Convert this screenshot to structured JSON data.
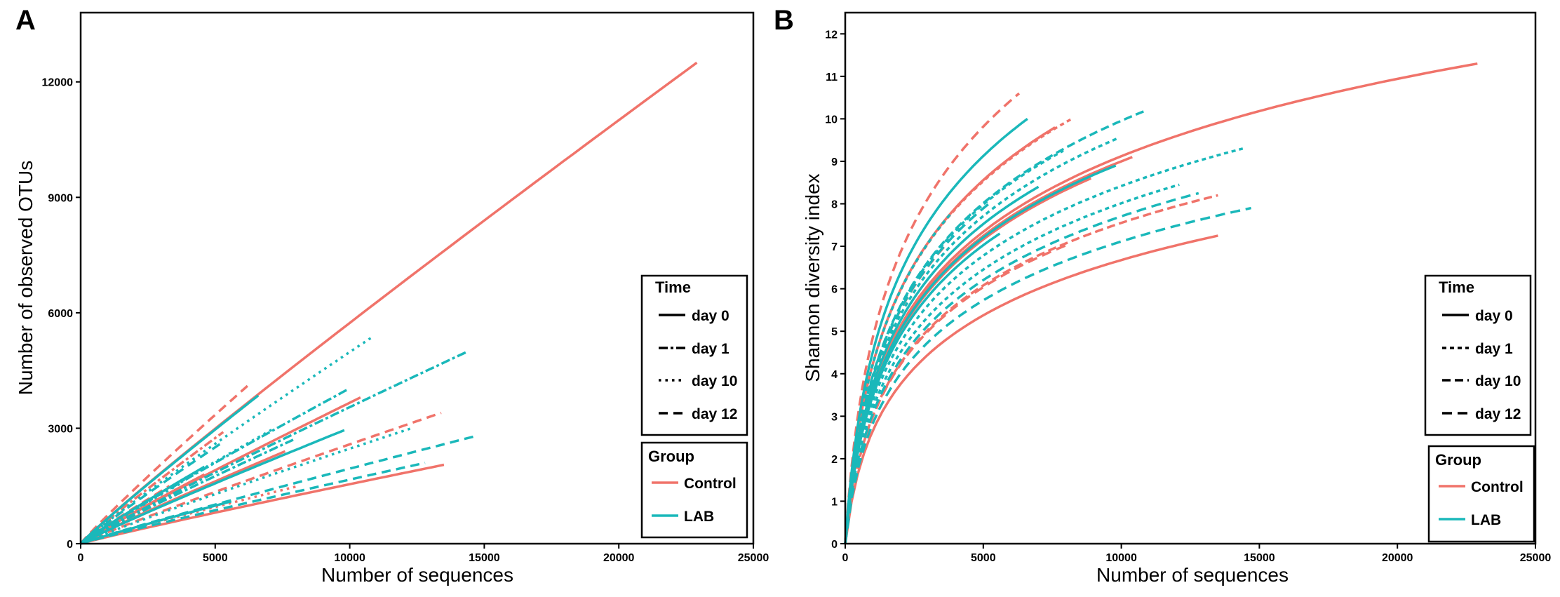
{
  "panels": [
    {
      "label": "A"
    },
    {
      "label": "B"
    }
  ],
  "legend": {
    "time_title": "Time",
    "time_items": [
      "day 0",
      "day 1",
      "day 10",
      "day 12"
    ],
    "group_title": "Group",
    "group_items": [
      "Control",
      "LAB"
    ]
  },
  "colors": {
    "Control": "#F0736A",
    "LAB": "#1AB8BA"
  },
  "chart_data": [
    {
      "type": "line",
      "panel": "A",
      "title": "",
      "xlabel": "Number of sequences",
      "ylabel": "Number of observed OTUs",
      "xlim": [
        0,
        25000
      ],
      "ylim": [
        0,
        13800
      ],
      "xticks": [
        0,
        5000,
        10000,
        15000,
        20000,
        25000
      ],
      "yticks": [
        0,
        3000,
        6000,
        9000,
        12000
      ],
      "series": [
        {
          "group": "Control",
          "time": "day 0",
          "xmax": 22900,
          "ymax": 12500
        },
        {
          "group": "Control",
          "time": "day 0",
          "xmax": 13500,
          "ymax": 2050
        },
        {
          "group": "Control",
          "time": "day 0",
          "xmax": 10400,
          "ymax": 3800
        },
        {
          "group": "Control",
          "time": "day 0",
          "xmax": 7600,
          "ymax": 2400
        },
        {
          "group": "Control",
          "time": "day 12",
          "xmax": 13400,
          "ymax": 3400
        },
        {
          "group": "Control",
          "time": "day 12",
          "xmax": 6200,
          "ymax": 4100
        },
        {
          "group": "Control",
          "time": "day 10",
          "xmax": 8100,
          "ymax": 1500
        },
        {
          "group": "Control",
          "time": "day 1",
          "xmax": 5300,
          "ymax": 2900
        },
        {
          "group": "Control",
          "time": "day 0",
          "xmax": 4600,
          "ymax": 1800
        },
        {
          "group": "Control",
          "time": "day 12",
          "xmax": 3300,
          "ymax": 1500
        },
        {
          "group": "Control",
          "time": "day 1",
          "xmax": 3600,
          "ymax": 1300
        },
        {
          "group": "LAB",
          "time": "day 10",
          "xmax": 10900,
          "ymax": 5400
        },
        {
          "group": "LAB",
          "time": "day 1",
          "xmax": 14400,
          "ymax": 5000
        },
        {
          "group": "LAB",
          "time": "day 12",
          "xmax": 14700,
          "ymax": 2800
        },
        {
          "group": "LAB",
          "time": "day 0",
          "xmax": 9800,
          "ymax": 2950
        },
        {
          "group": "LAB",
          "time": "day 0",
          "xmax": 6600,
          "ymax": 3850
        },
        {
          "group": "LAB",
          "time": "day 1",
          "xmax": 9900,
          "ymax": 4000
        },
        {
          "group": "LAB",
          "time": "day 10",
          "xmax": 12300,
          "ymax": 3000
        },
        {
          "group": "LAB",
          "time": "day 12",
          "xmax": 12800,
          "ymax": 2100
        },
        {
          "group": "LAB",
          "time": "day 0",
          "xmax": 5600,
          "ymax": 1100
        },
        {
          "group": "LAB",
          "time": "day 10",
          "xmax": 7200,
          "ymax": 3000
        },
        {
          "group": "LAB",
          "time": "day 1",
          "xmax": 7900,
          "ymax": 2700
        },
        {
          "group": "LAB",
          "time": "day 12",
          "xmax": 5200,
          "ymax": 2600
        },
        {
          "group": "LAB",
          "time": "day 0",
          "xmax": 4600,
          "ymax": 2000
        },
        {
          "group": "LAB",
          "time": "day 10",
          "xmax": 3800,
          "ymax": 1600
        }
      ]
    },
    {
      "type": "line",
      "panel": "B",
      "title": "",
      "xlabel": "Number of sequences",
      "ylabel": "Shannon diversity index",
      "xlim": [
        0,
        25000
      ],
      "ylim": [
        0,
        12.5
      ],
      "xticks": [
        0,
        5000,
        10000,
        15000,
        20000,
        25000
      ],
      "yticks": [
        0,
        1,
        2,
        3,
        4,
        5,
        6,
        7,
        8,
        9,
        10,
        11,
        12
      ],
      "series": [
        {
          "group": "Control",
          "time": "day 0",
          "xmax": 22900,
          "ymax": 11.3
        },
        {
          "group": "Control",
          "time": "day 0",
          "xmax": 13500,
          "ymax": 7.25
        },
        {
          "group": "Control",
          "time": "day 0",
          "xmax": 10400,
          "ymax": 9.1
        },
        {
          "group": "Control",
          "time": "day 0",
          "xmax": 8900,
          "ymax": 8.6
        },
        {
          "group": "Control",
          "time": "day 0",
          "xmax": 7600,
          "ymax": 9.8
        },
        {
          "group": "Control",
          "time": "day 12",
          "xmax": 6300,
          "ymax": 10.6
        },
        {
          "group": "Control",
          "time": "day 12",
          "xmax": 8100,
          "ymax": 7.05
        },
        {
          "group": "Control",
          "time": "day 10",
          "xmax": 13500,
          "ymax": 8.2
        },
        {
          "group": "Control",
          "time": "day 1",
          "xmax": 8200,
          "ymax": 10.0
        },
        {
          "group": "Control",
          "time": "day 12",
          "xmax": 3600,
          "ymax": 7.0
        },
        {
          "group": "LAB",
          "time": "day 0",
          "xmax": 6600,
          "ymax": 10.0
        },
        {
          "group": "LAB",
          "time": "day 0",
          "xmax": 5600,
          "ymax": 7.3
        },
        {
          "group": "LAB",
          "time": "day 0",
          "xmax": 9800,
          "ymax": 8.9
        },
        {
          "group": "LAB",
          "time": "day 0",
          "xmax": 7000,
          "ymax": 8.4
        },
        {
          "group": "LAB",
          "time": "day 12",
          "xmax": 14700,
          "ymax": 7.9
        },
        {
          "group": "LAB",
          "time": "day 10",
          "xmax": 10900,
          "ymax": 10.2
        },
        {
          "group": "LAB",
          "time": "day 1",
          "xmax": 14400,
          "ymax": 9.3
        },
        {
          "group": "LAB",
          "time": "day 1",
          "xmax": 12100,
          "ymax": 8.45
        },
        {
          "group": "LAB",
          "time": "day 1",
          "xmax": 9900,
          "ymax": 9.55
        },
        {
          "group": "LAB",
          "time": "day 12",
          "xmax": 12800,
          "ymax": 8.25
        },
        {
          "group": "LAB",
          "time": "day 1",
          "xmax": 7900,
          "ymax": 9.25
        },
        {
          "group": "LAB",
          "time": "day 12",
          "xmax": 5200,
          "ymax": 8.0
        },
        {
          "group": "LAB",
          "time": "day 1",
          "xmax": 3800,
          "ymax": 7.75
        }
      ]
    }
  ]
}
